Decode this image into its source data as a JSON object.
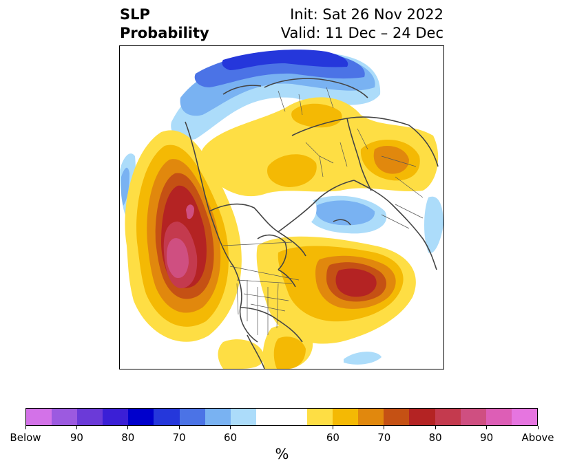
{
  "title": {
    "left_line1": "SLP",
    "left_line2": "Probability",
    "right_line1": "Init: Sat 26 Nov 2022",
    "right_line2": "Valid: 11 Dec – 24 Dec"
  },
  "colorbar": {
    "label": "%",
    "ticks": [
      "Below",
      "90",
      "80",
      "70",
      "60",
      "60",
      "70",
      "80",
      "90",
      "Above"
    ],
    "colors": [
      "#d372e8",
      "#9c5ae0",
      "#6b3ad8",
      "#3b1fd6",
      "#0000cc",
      "#2537db",
      "#4b73e6",
      "#79b2f2",
      "#acdcfa",
      "#ffffff",
      "#fede44",
      "#f4b904",
      "#e1880d",
      "#c55114",
      "#b42323",
      "#c43a4e",
      "#cf4f81",
      "#dd5eb6",
      "#e675e0"
    ]
  },
  "map": {
    "projection": "north-polar-stereographic",
    "features": [
      "coastlines",
      "country-borders",
      "us-state-borders"
    ]
  }
}
